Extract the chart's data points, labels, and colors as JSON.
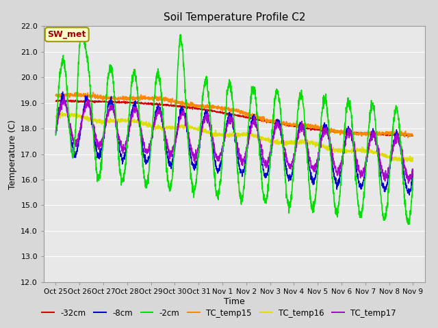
{
  "title": "Soil Temperature Profile C2",
  "xlabel": "Time",
  "ylabel": "Temperature (C)",
  "ylim": [
    12.0,
    22.0
  ],
  "yticks": [
    12.0,
    13.0,
    14.0,
    15.0,
    16.0,
    17.0,
    18.0,
    19.0,
    20.0,
    21.0,
    22.0
  ],
  "fig_bg": "#d8d8d8",
  "plot_bg": "#e8e8e8",
  "grid_color": "#ffffff",
  "annotation_text": "SW_met",
  "annotation_bg": "#ffffcc",
  "annotation_border": "#999900",
  "annotation_text_color": "#990000",
  "tick_labels": [
    "Oct 25",
    "Oct 26",
    "Oct 27",
    "Oct 28",
    "Oct 29",
    "Oct 30",
    "Oct 31",
    "Nov 1",
    "Nov 2",
    "Nov 3",
    "Nov 4",
    "Nov 5",
    "Nov 6",
    "Nov 7",
    "Nov 8",
    "Nov 9"
  ],
  "series_TC15_color": "#ff8800",
  "series_TC16_color": "#dddd00",
  "series_TC17_color": "#aa00cc",
  "series_neg2_color": "#00dd00",
  "series_neg8_color": "#0000cc",
  "series_neg32_color": "#cc0000",
  "legend_labels": [
    "-32cm",
    "-8cm",
    "-2cm",
    "TC_temp15",
    "TC_temp16",
    "TC_temp17"
  ],
  "legend_colors": [
    "#cc0000",
    "#0000cc",
    "#00dd00",
    "#ff8800",
    "#dddd00",
    "#aa00cc"
  ]
}
